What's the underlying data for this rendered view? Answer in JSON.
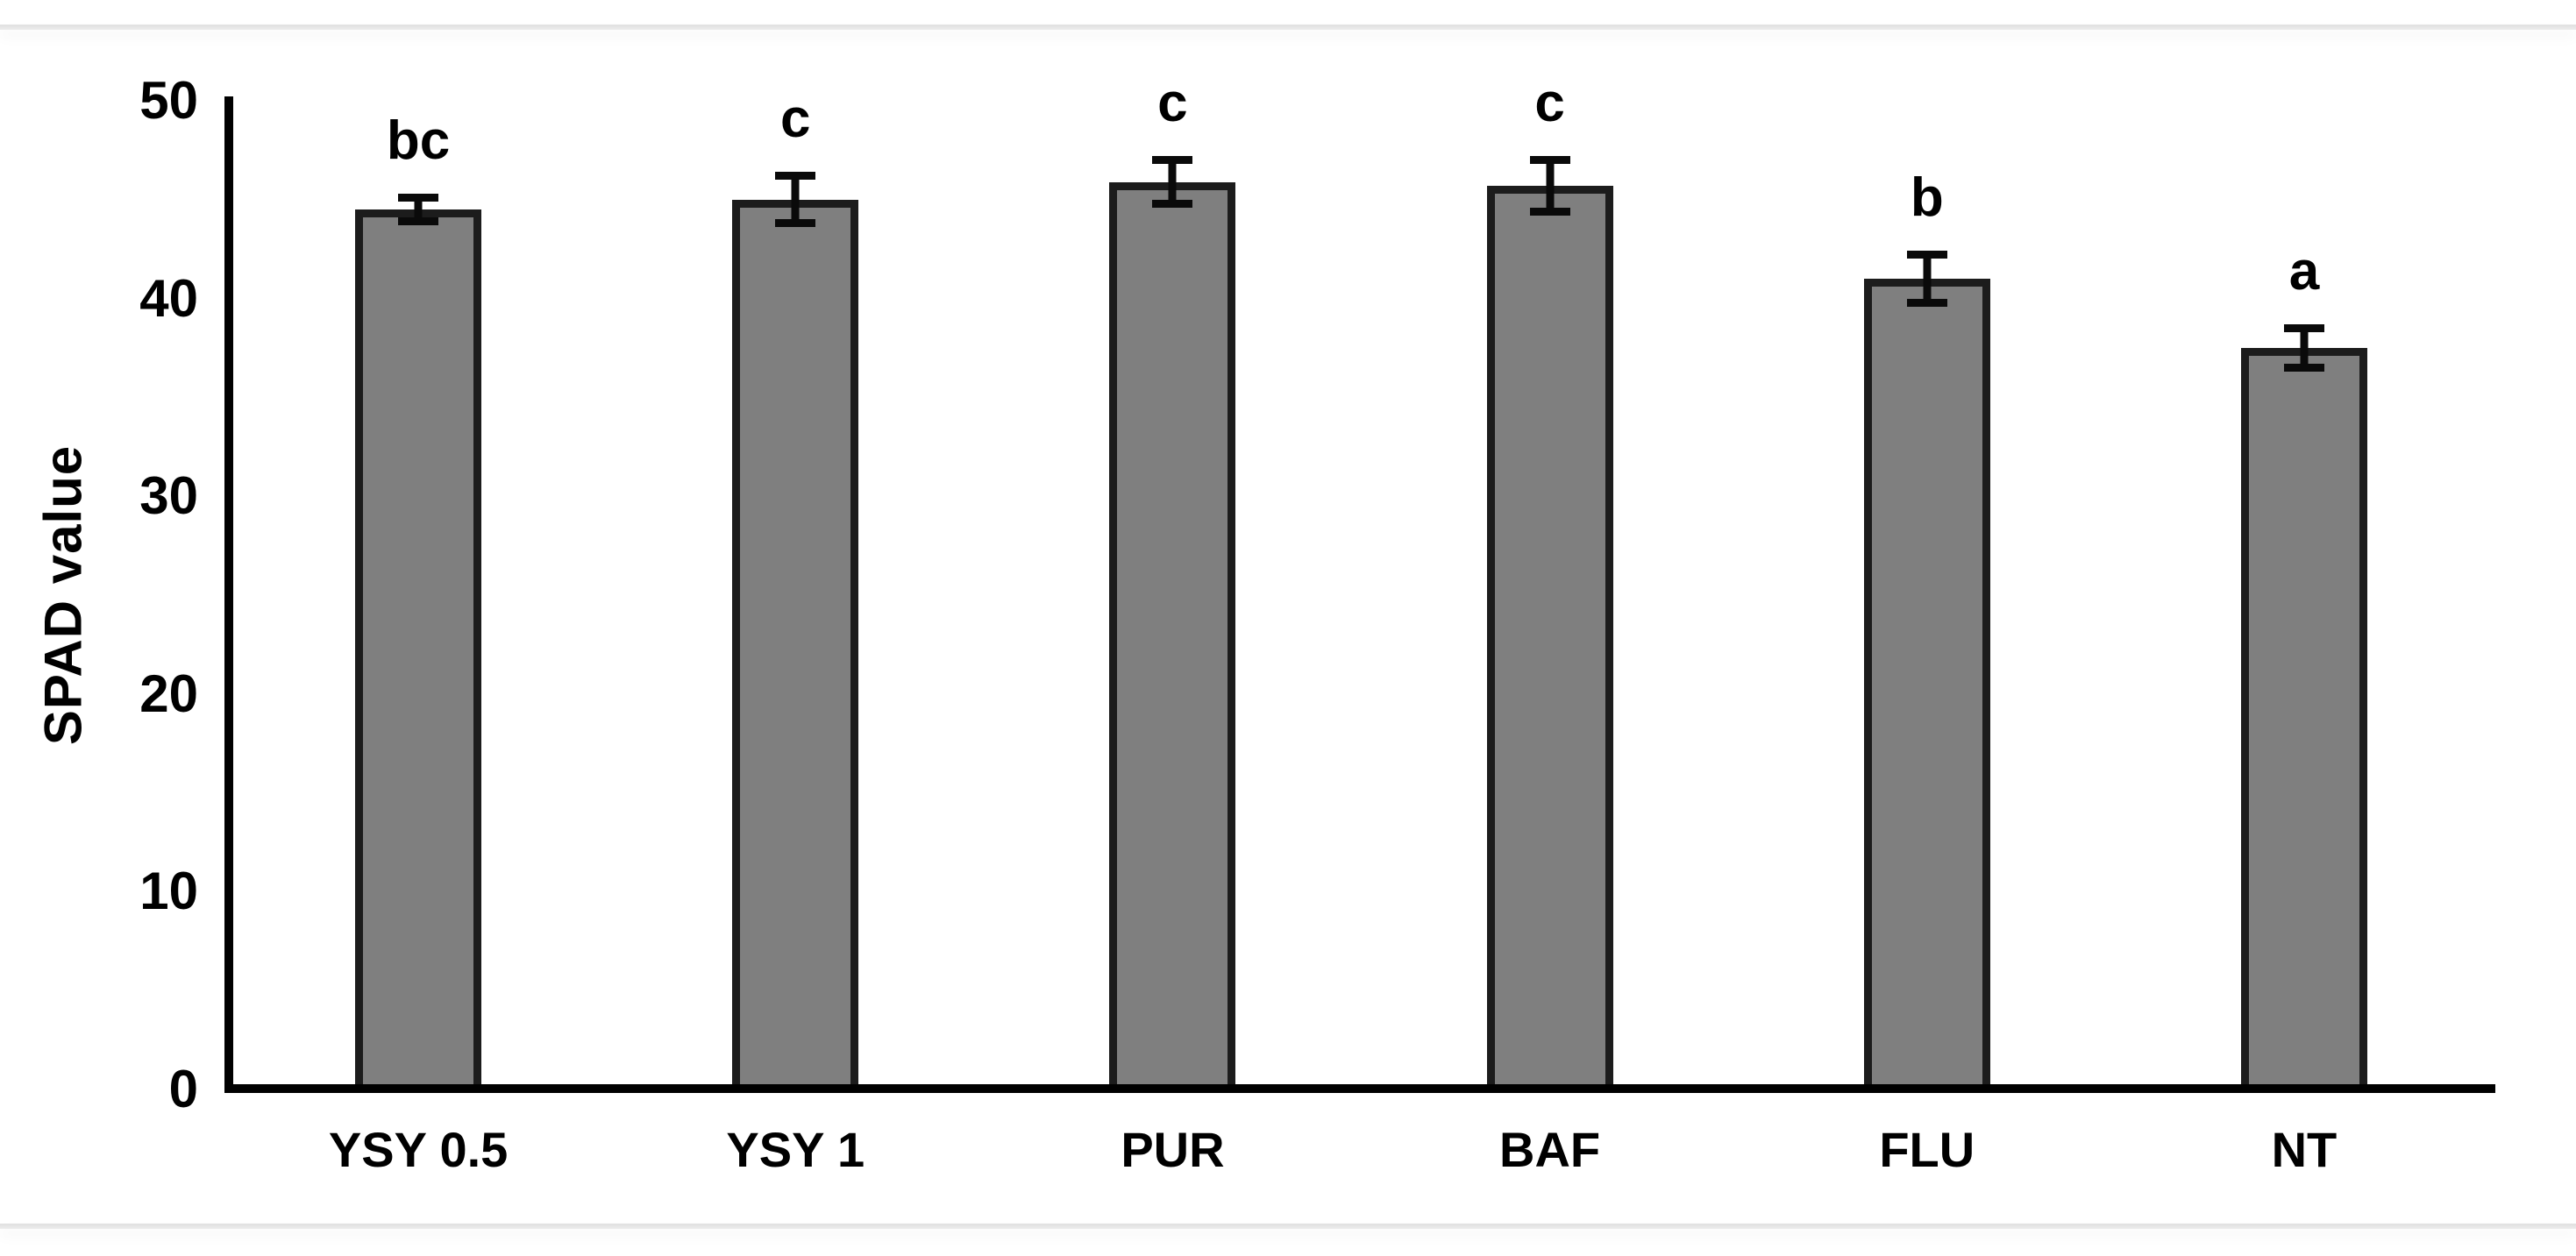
{
  "figure": {
    "background_color": "#ffffff",
    "page_rule_color": "#e5e5e5"
  },
  "chart_data": {
    "type": "bar",
    "title": "",
    "xlabel": "",
    "ylabel": "SPAD value",
    "categories": [
      "YSY 0.5",
      "YSY 1",
      "PUR",
      "BAF",
      "FLU",
      "NT"
    ],
    "values": [
      44.5,
      45.0,
      45.9,
      45.7,
      41.0,
      37.5
    ],
    "error_bars": [
      0.8,
      1.4,
      1.3,
      1.5,
      1.4,
      1.2
    ],
    "sig_letters": [
      "bc",
      "c",
      "c",
      "c",
      "b",
      "a"
    ],
    "ylim": [
      0,
      50
    ],
    "yticks": [
      0,
      10,
      20,
      30,
      40,
      50
    ],
    "grid": false,
    "legend": "none",
    "bar_color": "#7f7f7f",
    "bar_border_color": "#1c1c1c",
    "error_bar_color": "#0a0a0a",
    "axis_color": "#000000",
    "text_color": "#000000"
  }
}
